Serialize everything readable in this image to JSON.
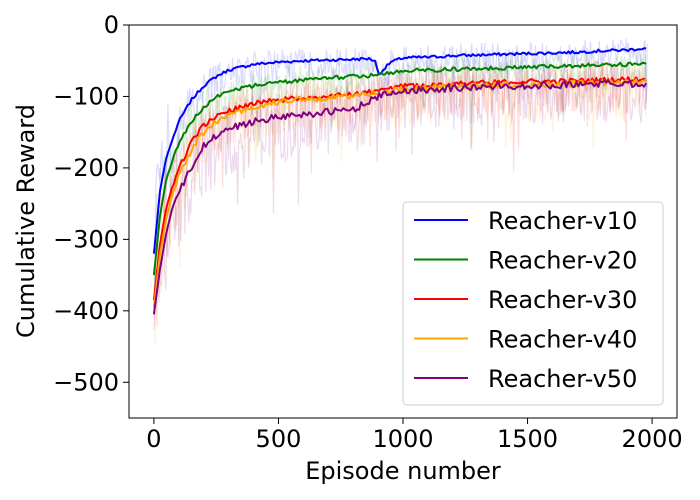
{
  "chart_data": {
    "type": "line",
    "title": "",
    "xlabel": "Episode number",
    "ylabel": "Cumulative Reward",
    "xlim": [
      -100,
      2100
    ],
    "ylim": [
      -550,
      0
    ],
    "xticks": [
      0,
      500,
      1000,
      1500,
      2000
    ],
    "yticks": [
      0,
      -100,
      -200,
      -300,
      -400,
      -500
    ],
    "xtick_labels": [
      "0",
      "500",
      "1000",
      "1500",
      "2000"
    ],
    "ytick_labels": [
      "0",
      "−100",
      "−200",
      "−300",
      "−400",
      "−500"
    ],
    "grid": false,
    "legend_position": "lower-right",
    "shaded_band": "noisy per-episode rewards drawn as faint translucent lines behind each smoothed mean line",
    "series": [
      {
        "name": "Reacher-v10",
        "color": "#0000ff",
        "x": [
          0,
          25,
          50,
          75,
          100,
          150,
          200,
          250,
          300,
          400,
          500,
          600,
          700,
          800,
          860,
          890,
          900,
          950,
          1000,
          1100,
          1200,
          1300,
          1400,
          1500,
          1600,
          1700,
          1800,
          1900,
          1950,
          1980
        ],
        "values": [
          -320,
          -230,
          -185,
          -160,
          -135,
          -105,
          -85,
          -72,
          -63,
          -55,
          -52,
          -50,
          -49,
          -48,
          -47,
          -50,
          -70,
          -52,
          -46,
          -45,
          -43,
          -42,
          -41,
          -40,
          -39,
          -38,
          -36,
          -35,
          -33,
          -33
        ]
      },
      {
        "name": "Reacher-v20",
        "color": "#008000",
        "x": [
          0,
          25,
          50,
          75,
          100,
          150,
          200,
          250,
          300,
          400,
          500,
          600,
          700,
          800,
          900,
          1000,
          1100,
          1200,
          1300,
          1400,
          1500,
          1600,
          1700,
          1800,
          1900,
          1980
        ],
        "values": [
          -350,
          -265,
          -215,
          -190,
          -165,
          -135,
          -115,
          -100,
          -92,
          -85,
          -80,
          -77,
          -74,
          -72,
          -70,
          -64,
          -63,
          -62,
          -61,
          -60,
          -59,
          -58,
          -57,
          -56,
          -55,
          -54
        ]
      },
      {
        "name": "Reacher-v30",
        "color": "#ff0000",
        "x": [
          0,
          25,
          50,
          75,
          100,
          150,
          200,
          250,
          300,
          400,
          500,
          600,
          700,
          800,
          900,
          1000,
          1100,
          1200,
          1300,
          1400,
          1500,
          1600,
          1700,
          1800,
          1900,
          1980
        ],
        "values": [
          -385,
          -305,
          -255,
          -225,
          -200,
          -165,
          -140,
          -128,
          -120,
          -110,
          -105,
          -102,
          -100,
          -97,
          -92,
          -86,
          -84,
          -82,
          -81,
          -80,
          -79,
          -79,
          -78,
          -77,
          -76,
          -76
        ]
      },
      {
        "name": "Reacher-v40",
        "color": "#ffa500",
        "x": [
          0,
          25,
          50,
          75,
          100,
          150,
          200,
          250,
          300,
          400,
          500,
          600,
          700,
          800,
          900,
          1000,
          1100,
          1200,
          1300,
          1400,
          1500,
          1600,
          1700,
          1800,
          1900,
          1980
        ],
        "values": [
          -395,
          -320,
          -270,
          -235,
          -210,
          -175,
          -150,
          -135,
          -125,
          -115,
          -108,
          -104,
          -102,
          -99,
          -95,
          -90,
          -88,
          -86,
          -85,
          -84,
          -84,
          -83,
          -82,
          -81,
          -80,
          -80
        ]
      },
      {
        "name": "Reacher-v50",
        "color": "#800080",
        "x": [
          0,
          25,
          50,
          75,
          100,
          150,
          200,
          250,
          300,
          400,
          500,
          600,
          700,
          800,
          900,
          1000,
          1100,
          1200,
          1300,
          1400,
          1500,
          1600,
          1700,
          1800,
          1900,
          1980
        ],
        "values": [
          -405,
          -340,
          -290,
          -255,
          -235,
          -200,
          -170,
          -155,
          -145,
          -135,
          -128,
          -125,
          -122,
          -118,
          -100,
          -92,
          -90,
          -88,
          -87,
          -86,
          -85,
          -84,
          -83,
          -82,
          -82,
          -82
        ]
      }
    ]
  }
}
